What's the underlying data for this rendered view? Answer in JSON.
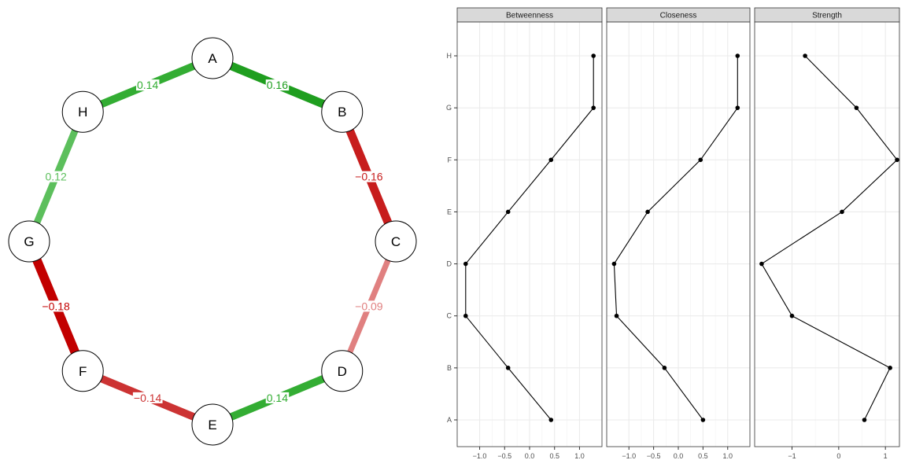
{
  "chart_data": [
    {
      "type": "network",
      "nodes": [
        "A",
        "B",
        "C",
        "D",
        "E",
        "F",
        "G",
        "H"
      ],
      "edges": [
        {
          "from": "A",
          "to": "B",
          "weight": 0.16,
          "label": "0.16",
          "color": "#1f9e1f"
        },
        {
          "from": "B",
          "to": "C",
          "weight": -0.16,
          "label": "−0.16",
          "color": "#c71d1d"
        },
        {
          "from": "C",
          "to": "D",
          "weight": -0.09,
          "label": "−0.09",
          "color": "#e08080"
        },
        {
          "from": "D",
          "to": "E",
          "weight": 0.14,
          "label": "0.14",
          "color": "#33ad33"
        },
        {
          "from": "E",
          "to": "F",
          "weight": -0.14,
          "label": "−0.14",
          "color": "#cc3333"
        },
        {
          "from": "F",
          "to": "G",
          "weight": -0.18,
          "label": "−0.18",
          "color": "#c20000"
        },
        {
          "from": "G",
          "to": "H",
          "weight": 0.12,
          "label": "0.12",
          "color": "#5cbf5c"
        },
        {
          "from": "H",
          "to": "A",
          "weight": 0.14,
          "label": "0.14",
          "color": "#33ad33"
        }
      ]
    },
    {
      "type": "line",
      "panels": [
        "Betweenness",
        "Closeness",
        "Strength"
      ],
      "y_categories": [
        "A",
        "B",
        "C",
        "D",
        "E",
        "F",
        "G",
        "H"
      ],
      "series": [
        {
          "panel": "Betweenness",
          "values": [
            0.43,
            -0.43,
            -1.28,
            -1.28,
            -0.43,
            0.43,
            1.28,
            1.28
          ]
        },
        {
          "panel": "Closeness",
          "values": [
            0.5,
            -0.28,
            -1.25,
            -1.3,
            -0.62,
            0.45,
            1.2,
            1.2
          ]
        },
        {
          "panel": "Strength",
          "values": [
            0.55,
            1.1,
            -1.0,
            -1.65,
            0.07,
            1.25,
            0.38,
            -0.72
          ]
        }
      ],
      "xlim": [
        [
          -1.45,
          1.45
        ],
        [
          -1.45,
          1.45
        ],
        [
          -1.8,
          1.3
        ]
      ],
      "x_ticks": [
        {
          "values": [
            -1.0,
            -0.5,
            0.0,
            0.5,
            1.0
          ],
          "labels": [
            "−1.0",
            "−0.5",
            "0.0",
            "0.5",
            "1.0"
          ]
        },
        {
          "values": [
            -1.0,
            -0.5,
            0.0,
            0.5,
            1.0
          ],
          "labels": [
            "−1.0",
            "−0.5",
            "0.0",
            "0.5",
            "1.0"
          ]
        },
        {
          "values": [
            -1,
            0,
            1
          ],
          "labels": [
            "−1",
            "0",
            "1"
          ]
        }
      ],
      "grid": true,
      "colors": {
        "line": "#000000",
        "strip_bg": "#d9d9d9",
        "grid": "#ebebeb"
      }
    }
  ]
}
